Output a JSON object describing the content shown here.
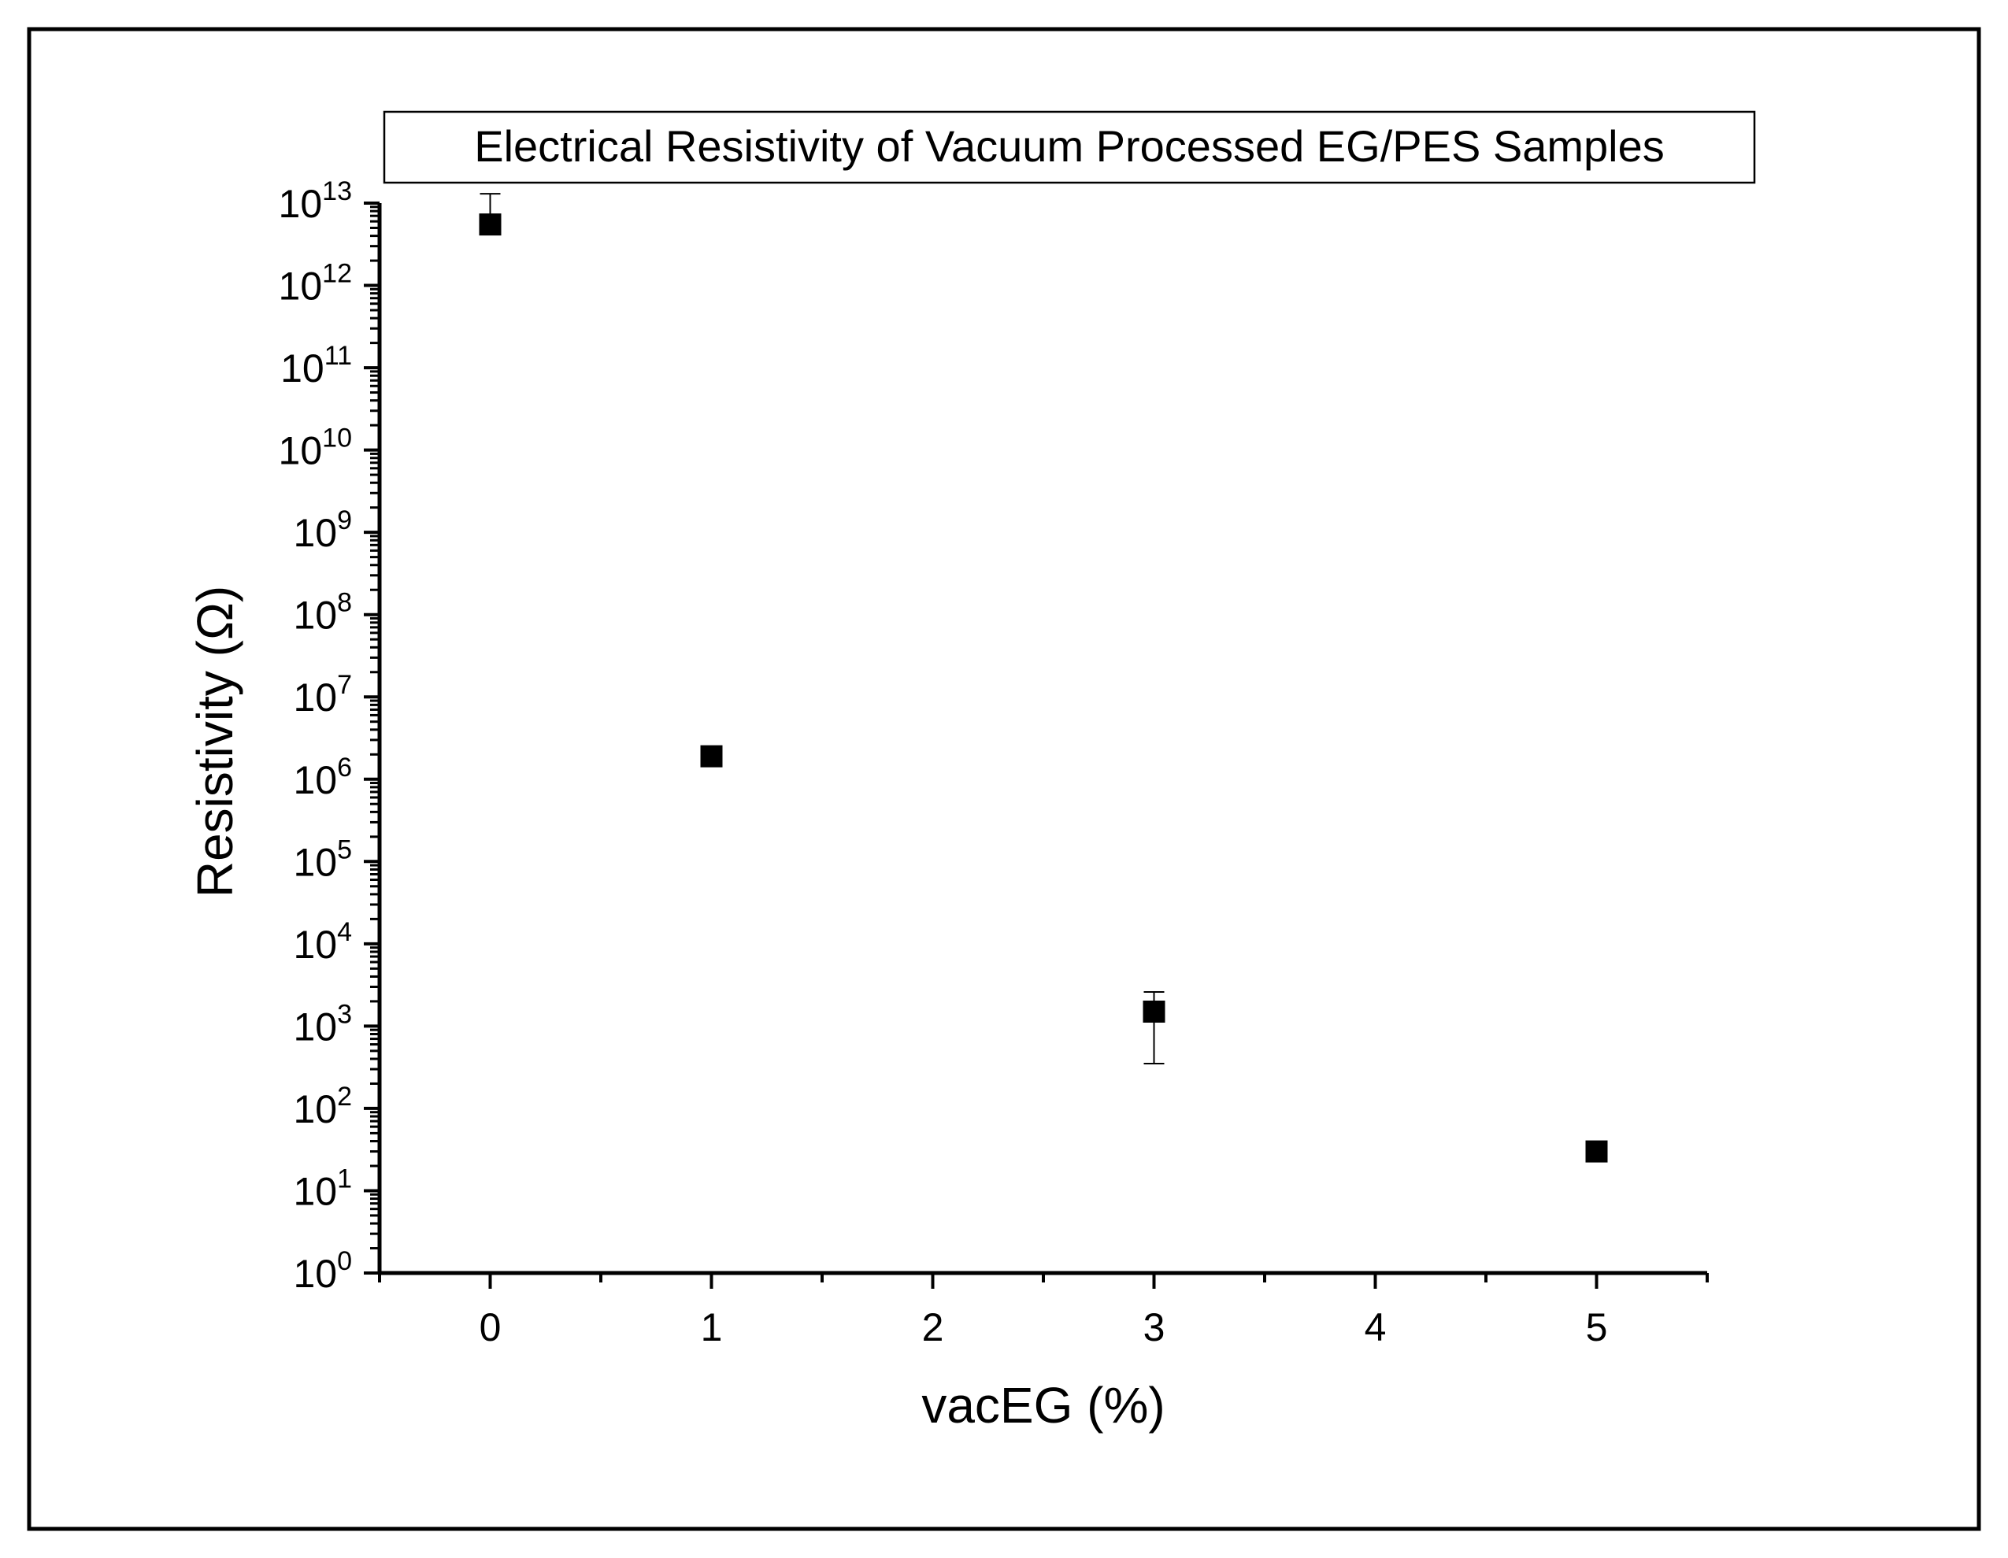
{
  "chart_data": {
    "type": "scatter",
    "title": "Electrical Resistivity of Vacuum Processed EG/PES Samples",
    "xlabel": "vacEG (%)",
    "ylabel": "Resistivity (Ω)",
    "xlim": [
      -0.5,
      5.5
    ],
    "ylim": [
      1,
      10000000000000
    ],
    "yscale": "log",
    "grid": false,
    "x_ticks": [
      "0",
      "1",
      "2",
      "3",
      "4",
      "5"
    ],
    "y_tick_base": "10",
    "y_tick_exponents": [
      "0",
      "1",
      "2",
      "3",
      "4",
      "5",
      "6",
      "7",
      "8",
      "9",
      "10",
      "11",
      "12",
      "13"
    ],
    "points": [
      {
        "x": 0,
        "y": 5500000000000,
        "err_plus": 7500000000000,
        "err_minus": 0
      },
      {
        "x": 1,
        "y": 1900000,
        "err_plus": 0,
        "err_minus": 0
      },
      {
        "x": 3,
        "y": 1500,
        "err_plus": 1100,
        "err_minus": 1150
      },
      {
        "x": 5,
        "y": 30,
        "err_plus": 0,
        "err_minus": 0
      }
    ],
    "marker_color": "#000000"
  }
}
